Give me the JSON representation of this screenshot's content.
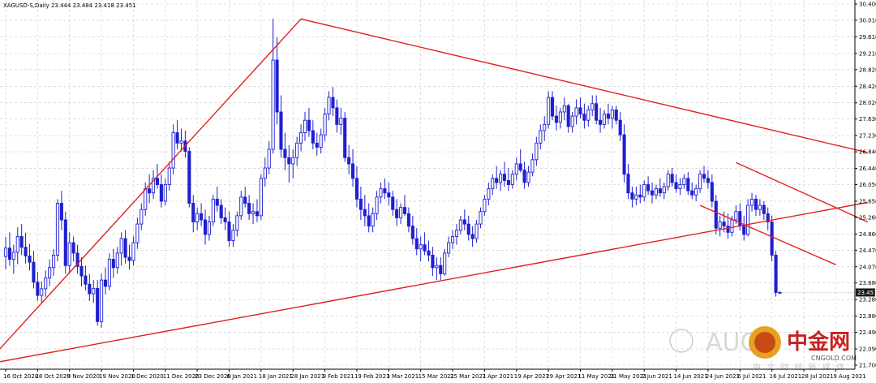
{
  "header": {
    "text": "XAGUSD-S,Daily  23.444 23.484 23.418 23.451"
  },
  "colors": {
    "bull": "#1f1fd0",
    "bear": "#1f1fd0",
    "trendline": "#e02020",
    "grid": "#c8c8c8",
    "price_tag_bg": "#1a1a1a",
    "price_tag_fg": "#ffffff"
  },
  "watermark": {
    "brand_en": "AUG",
    "brand_cn": "中金网",
    "subtitle_cn": "中 文 财 经 新 媒 体",
    "site": "CNGOLD.COM"
  },
  "chart_data": {
    "type": "candlestick",
    "symbol": "XAGUSD-S",
    "timeframe": "Daily",
    "ylim": [
      21.7,
      30.4
    ],
    "yticks": [
      "30.400",
      "30.010",
      "29.610",
      "29.210",
      "28.820",
      "28.420",
      "28.020",
      "27.630",
      "27.230",
      "26.840",
      "26.440",
      "26.050",
      "25.650",
      "25.260",
      "24.860",
      "24.470",
      "24.070",
      "23.680",
      "23.280",
      "22.880",
      "22.490",
      "22.090",
      "21.700"
    ],
    "current_price": "23.451",
    "x_labels": [
      "16 Oct 2020",
      "28 Oct 2020",
      "9 Nov 2020",
      "19 Nov 2020",
      "1 Dec 2020",
      "11 Dec 2020",
      "23 Dec 2020",
      "6 Jan 2021",
      "18 Jan 2021",
      "28 Jan 2021",
      "9 Feb 2021",
      "19 Feb 2021",
      "3 Mar 2021",
      "15 Mar 2021",
      "25 Mar 2021",
      "7 Apr 2021",
      "19 Apr 2021",
      "29 Apr 2021",
      "11 May 2021",
      "21 May 2021",
      "2 Jun 2021",
      "14 Jun 2021",
      "24 Jun 2021",
      "6 Jul 2021",
      "16 Jul 2021",
      "28 Jul 2021",
      "9 Aug 2021"
    ],
    "label_bar_index": [
      0,
      8,
      16,
      24,
      32,
      40,
      48,
      56,
      64,
      72,
      80,
      88,
      96,
      104,
      112,
      120,
      128,
      136,
      144,
      152,
      160,
      168,
      176,
      184,
      192,
      200,
      208
    ],
    "candles": [
      [
        24.32,
        24.79,
        24.01,
        24.52
      ],
      [
        24.52,
        24.9,
        24.1,
        24.25
      ],
      [
        24.25,
        24.6,
        23.9,
        24.42
      ],
      [
        24.42,
        25.02,
        24.13,
        24.8
      ],
      [
        24.8,
        25.1,
        24.35,
        24.54
      ],
      [
        24.54,
        24.89,
        24.15,
        24.33
      ],
      [
        24.33,
        24.62,
        23.98,
        24.18
      ],
      [
        24.18,
        24.45,
        23.55,
        23.7
      ],
      [
        23.7,
        23.95,
        23.25,
        23.38
      ],
      [
        23.38,
        23.72,
        23.19,
        23.54
      ],
      [
        23.54,
        23.98,
        23.35,
        23.8
      ],
      [
        23.8,
        24.25,
        23.6,
        24.05
      ],
      [
        24.05,
        24.5,
        23.85,
        24.35
      ],
      [
        24.35,
        25.7,
        24.2,
        25.6
      ],
      [
        25.6,
        25.9,
        24.95,
        25.2
      ],
      [
        25.2,
        25.4,
        23.9,
        24.1
      ],
      [
        24.1,
        24.9,
        23.9,
        24.65
      ],
      [
        24.65,
        24.8,
        24.2,
        24.4
      ],
      [
        24.4,
        24.6,
        23.9,
        24.08
      ],
      [
        24.08,
        24.3,
        23.6,
        23.85
      ],
      [
        23.85,
        24.1,
        23.5,
        23.65
      ],
      [
        23.65,
        23.9,
        23.25,
        23.42
      ],
      [
        23.42,
        23.75,
        23.2,
        23.55
      ],
      [
        23.55,
        23.75,
        22.65,
        22.75
      ],
      [
        22.75,
        23.9,
        22.6,
        23.75
      ],
      [
        23.75,
        24.05,
        23.4,
        23.6
      ],
      [
        23.6,
        24.4,
        23.5,
        24.25
      ],
      [
        24.25,
        24.5,
        23.8,
        24.05
      ],
      [
        24.05,
        24.55,
        23.9,
        24.4
      ],
      [
        24.4,
        24.9,
        24.1,
        24.75
      ],
      [
        24.75,
        24.95,
        24.15,
        24.3
      ],
      [
        24.3,
        24.6,
        24.0,
        24.22
      ],
      [
        24.22,
        24.8,
        24.1,
        24.65
      ],
      [
        24.65,
        25.25,
        24.5,
        25.1
      ],
      [
        25.1,
        25.6,
        24.95,
        25.45
      ],
      [
        25.45,
        26.1,
        25.3,
        25.95
      ],
      [
        25.95,
        26.3,
        25.6,
        25.85
      ],
      [
        25.85,
        26.4,
        25.7,
        26.2
      ],
      [
        26.2,
        26.55,
        25.95,
        26.05
      ],
      [
        26.05,
        26.3,
        25.5,
        25.65
      ],
      [
        25.65,
        26.2,
        25.55,
        26.05
      ],
      [
        26.05,
        26.6,
        25.9,
        26.45
      ],
      [
        26.45,
        27.5,
        26.3,
        27.3
      ],
      [
        27.3,
        27.6,
        26.9,
        27.05
      ],
      [
        27.05,
        27.4,
        26.85,
        27.1
      ],
      [
        27.1,
        27.35,
        26.7,
        26.85
      ],
      [
        26.85,
        26.95,
        25.5,
        25.6
      ],
      [
        25.6,
        25.8,
        24.9,
        25.15
      ],
      [
        25.15,
        25.5,
        24.95,
        25.35
      ],
      [
        25.35,
        25.6,
        25.05,
        25.2
      ],
      [
        25.2,
        25.45,
        24.6,
        24.85
      ],
      [
        24.85,
        25.3,
        24.7,
        25.15
      ],
      [
        25.15,
        25.8,
        25.05,
        25.7
      ],
      [
        25.7,
        26.0,
        25.4,
        25.55
      ],
      [
        25.55,
        25.7,
        25.1,
        25.25
      ],
      [
        25.25,
        25.5,
        24.95,
        25.15
      ],
      [
        25.15,
        25.4,
        24.55,
        24.7
      ],
      [
        24.7,
        25.1,
        24.55,
        24.95
      ],
      [
        24.95,
        25.4,
        24.8,
        25.3
      ],
      [
        25.3,
        25.9,
        25.2,
        25.75
      ],
      [
        25.75,
        26.0,
        25.5,
        25.6
      ],
      [
        25.6,
        25.8,
        25.2,
        25.35
      ],
      [
        25.35,
        25.6,
        25.1,
        25.4
      ],
      [
        25.4,
        25.7,
        25.15,
        25.3
      ],
      [
        25.3,
        26.3,
        25.2,
        26.2
      ],
      [
        26.2,
        26.7,
        26.0,
        26.45
      ],
      [
        26.45,
        27.1,
        26.3,
        26.9
      ],
      [
        26.9,
        30.05,
        26.8,
        29.05
      ],
      [
        29.05,
        29.6,
        27.5,
        27.8
      ],
      [
        27.8,
        28.2,
        26.7,
        26.9
      ],
      [
        26.9,
        27.3,
        26.4,
        26.7
      ],
      [
        26.7,
        27.0,
        26.1,
        26.55
      ],
      [
        26.55,
        26.9,
        26.2,
        26.7
      ],
      [
        26.7,
        27.2,
        26.5,
        27.05
      ],
      [
        27.05,
        27.5,
        26.85,
        27.3
      ],
      [
        27.3,
        27.8,
        27.1,
        27.6
      ],
      [
        27.6,
        27.9,
        27.2,
        27.35
      ],
      [
        27.35,
        27.6,
        26.9,
        27.05
      ],
      [
        27.05,
        27.3,
        26.75,
        26.95
      ],
      [
        26.95,
        27.4,
        26.8,
        27.25
      ],
      [
        27.25,
        27.9,
        27.1,
        27.75
      ],
      [
        27.75,
        28.3,
        27.6,
        28.15
      ],
      [
        28.15,
        28.4,
        27.7,
        27.9
      ],
      [
        27.9,
        28.1,
        27.3,
        27.5
      ],
      [
        27.5,
        27.9,
        27.25,
        27.65
      ],
      [
        27.65,
        27.8,
        26.6,
        26.7
      ],
      [
        26.7,
        27.0,
        26.3,
        26.55
      ],
      [
        26.55,
        26.9,
        26.0,
        26.2
      ],
      [
        26.2,
        26.5,
        25.5,
        25.7
      ],
      [
        25.7,
        26.0,
        25.2,
        25.45
      ],
      [
        25.45,
        25.8,
        25.05,
        25.3
      ],
      [
        25.3,
        25.6,
        24.9,
        25.05
      ],
      [
        25.05,
        25.5,
        24.9,
        25.35
      ],
      [
        25.35,
        25.9,
        25.2,
        25.75
      ],
      [
        25.75,
        26.1,
        25.6,
        25.95
      ],
      [
        25.95,
        26.2,
        25.7,
        25.85
      ],
      [
        25.85,
        26.1,
        25.55,
        25.75
      ],
      [
        25.75,
        25.9,
        25.3,
        25.45
      ],
      [
        25.45,
        25.7,
        25.05,
        25.25
      ],
      [
        25.25,
        25.6,
        25.1,
        25.5
      ],
      [
        25.5,
        25.8,
        25.3,
        25.35
      ],
      [
        25.35,
        25.5,
        24.9,
        25.05
      ],
      [
        25.05,
        25.3,
        24.6,
        24.75
      ],
      [
        24.75,
        25.0,
        24.35,
        24.5
      ],
      [
        24.5,
        24.8,
        24.2,
        24.6
      ],
      [
        24.6,
        24.9,
        24.35,
        24.45
      ],
      [
        24.45,
        24.7,
        24.2,
        24.35
      ],
      [
        24.35,
        24.55,
        23.85,
        24.05
      ],
      [
        24.05,
        24.3,
        23.75,
        24.1
      ],
      [
        24.1,
        24.3,
        23.75,
        23.9
      ],
      [
        23.9,
        24.5,
        23.85,
        24.4
      ],
      [
        24.4,
        24.8,
        24.3,
        24.65
      ],
      [
        24.65,
        24.95,
        24.5,
        24.8
      ],
      [
        24.8,
        25.1,
        24.6,
        24.95
      ],
      [
        24.95,
        25.3,
        24.85,
        25.2
      ],
      [
        25.2,
        25.45,
        24.95,
        25.1
      ],
      [
        25.1,
        25.3,
        24.7,
        24.85
      ],
      [
        24.85,
        25.05,
        24.55,
        24.75
      ],
      [
        24.75,
        25.2,
        24.65,
        25.1
      ],
      [
        25.1,
        25.5,
        25.0,
        25.4
      ],
      [
        25.4,
        25.8,
        25.3,
        25.7
      ],
      [
        25.7,
        26.1,
        25.55,
        25.95
      ],
      [
        25.95,
        26.3,
        25.8,
        26.2
      ],
      [
        26.2,
        26.5,
        25.95,
        26.1
      ],
      [
        26.1,
        26.4,
        25.9,
        26.3
      ],
      [
        26.3,
        26.6,
        26.0,
        26.15
      ],
      [
        26.15,
        26.45,
        25.9,
        26.05
      ],
      [
        26.05,
        26.4,
        25.95,
        26.3
      ],
      [
        26.3,
        26.7,
        26.15,
        26.55
      ],
      [
        26.55,
        26.9,
        26.35,
        26.4
      ],
      [
        26.4,
        26.6,
        25.95,
        26.1
      ],
      [
        26.1,
        26.5,
        26.0,
        26.35
      ],
      [
        26.35,
        26.8,
        26.25,
        26.65
      ],
      [
        26.65,
        27.2,
        26.5,
        27.05
      ],
      [
        27.05,
        27.5,
        26.9,
        27.35
      ],
      [
        27.35,
        27.7,
        27.1,
        27.5
      ],
      [
        27.5,
        28.3,
        27.4,
        28.15
      ],
      [
        28.15,
        28.3,
        27.6,
        27.7
      ],
      [
        27.7,
        27.95,
        27.35,
        27.55
      ],
      [
        27.55,
        27.9,
        27.4,
        27.8
      ],
      [
        27.8,
        28.15,
        27.6,
        27.95
      ],
      [
        27.95,
        28.0,
        27.3,
        27.45
      ],
      [
        27.45,
        27.8,
        27.3,
        27.7
      ],
      [
        27.7,
        28.1,
        27.5,
        27.9
      ],
      [
        27.9,
        28.15,
        27.65,
        27.75
      ],
      [
        27.75,
        28.0,
        27.4,
        27.6
      ],
      [
        27.6,
        27.95,
        27.45,
        27.85
      ],
      [
        27.85,
        28.2,
        27.7,
        28.0
      ],
      [
        28.0,
        28.2,
        27.5,
        27.6
      ],
      [
        27.6,
        27.9,
        27.3,
        27.5
      ],
      [
        27.5,
        27.85,
        27.4,
        27.75
      ],
      [
        27.75,
        28.0,
        27.5,
        27.65
      ],
      [
        27.65,
        27.95,
        27.4,
        27.85
      ],
      [
        27.85,
        27.95,
        27.5,
        27.6
      ],
      [
        27.6,
        27.8,
        27.1,
        27.25
      ],
      [
        27.25,
        27.5,
        26.1,
        26.3
      ],
      [
        26.3,
        26.55,
        25.7,
        25.85
      ],
      [
        25.85,
        26.0,
        25.5,
        25.7
      ],
      [
        25.7,
        26.0,
        25.55,
        25.8
      ],
      [
        25.8,
        26.05,
        25.6,
        25.75
      ],
      [
        25.75,
        26.15,
        25.65,
        26.05
      ],
      [
        26.05,
        26.25,
        25.8,
        25.9
      ],
      [
        25.9,
        26.1,
        25.6,
        25.8
      ],
      [
        25.8,
        26.05,
        25.7,
        25.95
      ],
      [
        25.95,
        26.2,
        25.75,
        25.85
      ],
      [
        25.85,
        26.1,
        25.7,
        26.0
      ],
      [
        26.0,
        26.4,
        25.9,
        26.3
      ],
      [
        26.3,
        26.45,
        26.0,
        26.1
      ],
      [
        26.1,
        26.3,
        25.85,
        25.95
      ],
      [
        25.95,
        26.2,
        25.8,
        26.05
      ],
      [
        26.05,
        26.3,
        25.95,
        26.2
      ],
      [
        26.2,
        26.35,
        25.8,
        25.9
      ],
      [
        25.9,
        26.1,
        25.7,
        25.8
      ],
      [
        25.8,
        26.05,
        25.65,
        25.95
      ],
      [
        25.95,
        26.4,
        25.85,
        26.3
      ],
      [
        26.3,
        26.5,
        26.1,
        26.2
      ],
      [
        26.2,
        26.4,
        25.95,
        26.1
      ],
      [
        26.1,
        26.3,
        25.5,
        25.65
      ],
      [
        25.65,
        25.8,
        24.85,
        25.0
      ],
      [
        25.0,
        25.3,
        24.8,
        25.15
      ],
      [
        25.15,
        25.4,
        24.9,
        25.05
      ],
      [
        25.05,
        25.35,
        24.75,
        24.9
      ],
      [
        24.9,
        25.3,
        24.8,
        25.2
      ],
      [
        25.2,
        25.55,
        25.1,
        25.4
      ],
      [
        25.4,
        25.6,
        24.95,
        25.05
      ],
      [
        25.05,
        25.3,
        24.7,
        24.85
      ],
      [
        24.85,
        25.7,
        24.8,
        25.55
      ],
      [
        25.55,
        25.85,
        25.4,
        25.7
      ],
      [
        25.7,
        25.8,
        25.3,
        25.45
      ],
      [
        25.45,
        25.7,
        25.3,
        25.55
      ],
      [
        25.55,
        25.65,
        25.2,
        25.35
      ],
      [
        25.35,
        25.5,
        24.95,
        25.15
      ],
      [
        25.15,
        25.3,
        24.2,
        24.35
      ],
      [
        24.35,
        24.45,
        23.35,
        23.45
      ],
      [
        23.444,
        23.484,
        23.418,
        23.451
      ]
    ],
    "trendlines": [
      {
        "name": "upper-resistance",
        "from": [
          -5,
          21.72
        ],
        "to": [
          74,
          30.04
        ],
        "to2": [
          216,
          26.82
        ]
      },
      {
        "name": "lower-support",
        "from": [
          -5,
          21.72
        ],
        "to": [
          216,
          25.62
        ]
      },
      {
        "name": "channel-top",
        "from": [
          183,
          26.58
        ],
        "to": [
          216,
          25.15
        ]
      },
      {
        "name": "channel-bottom",
        "from": [
          174,
          25.55
        ],
        "to": [
          208,
          24.12
        ]
      }
    ]
  }
}
